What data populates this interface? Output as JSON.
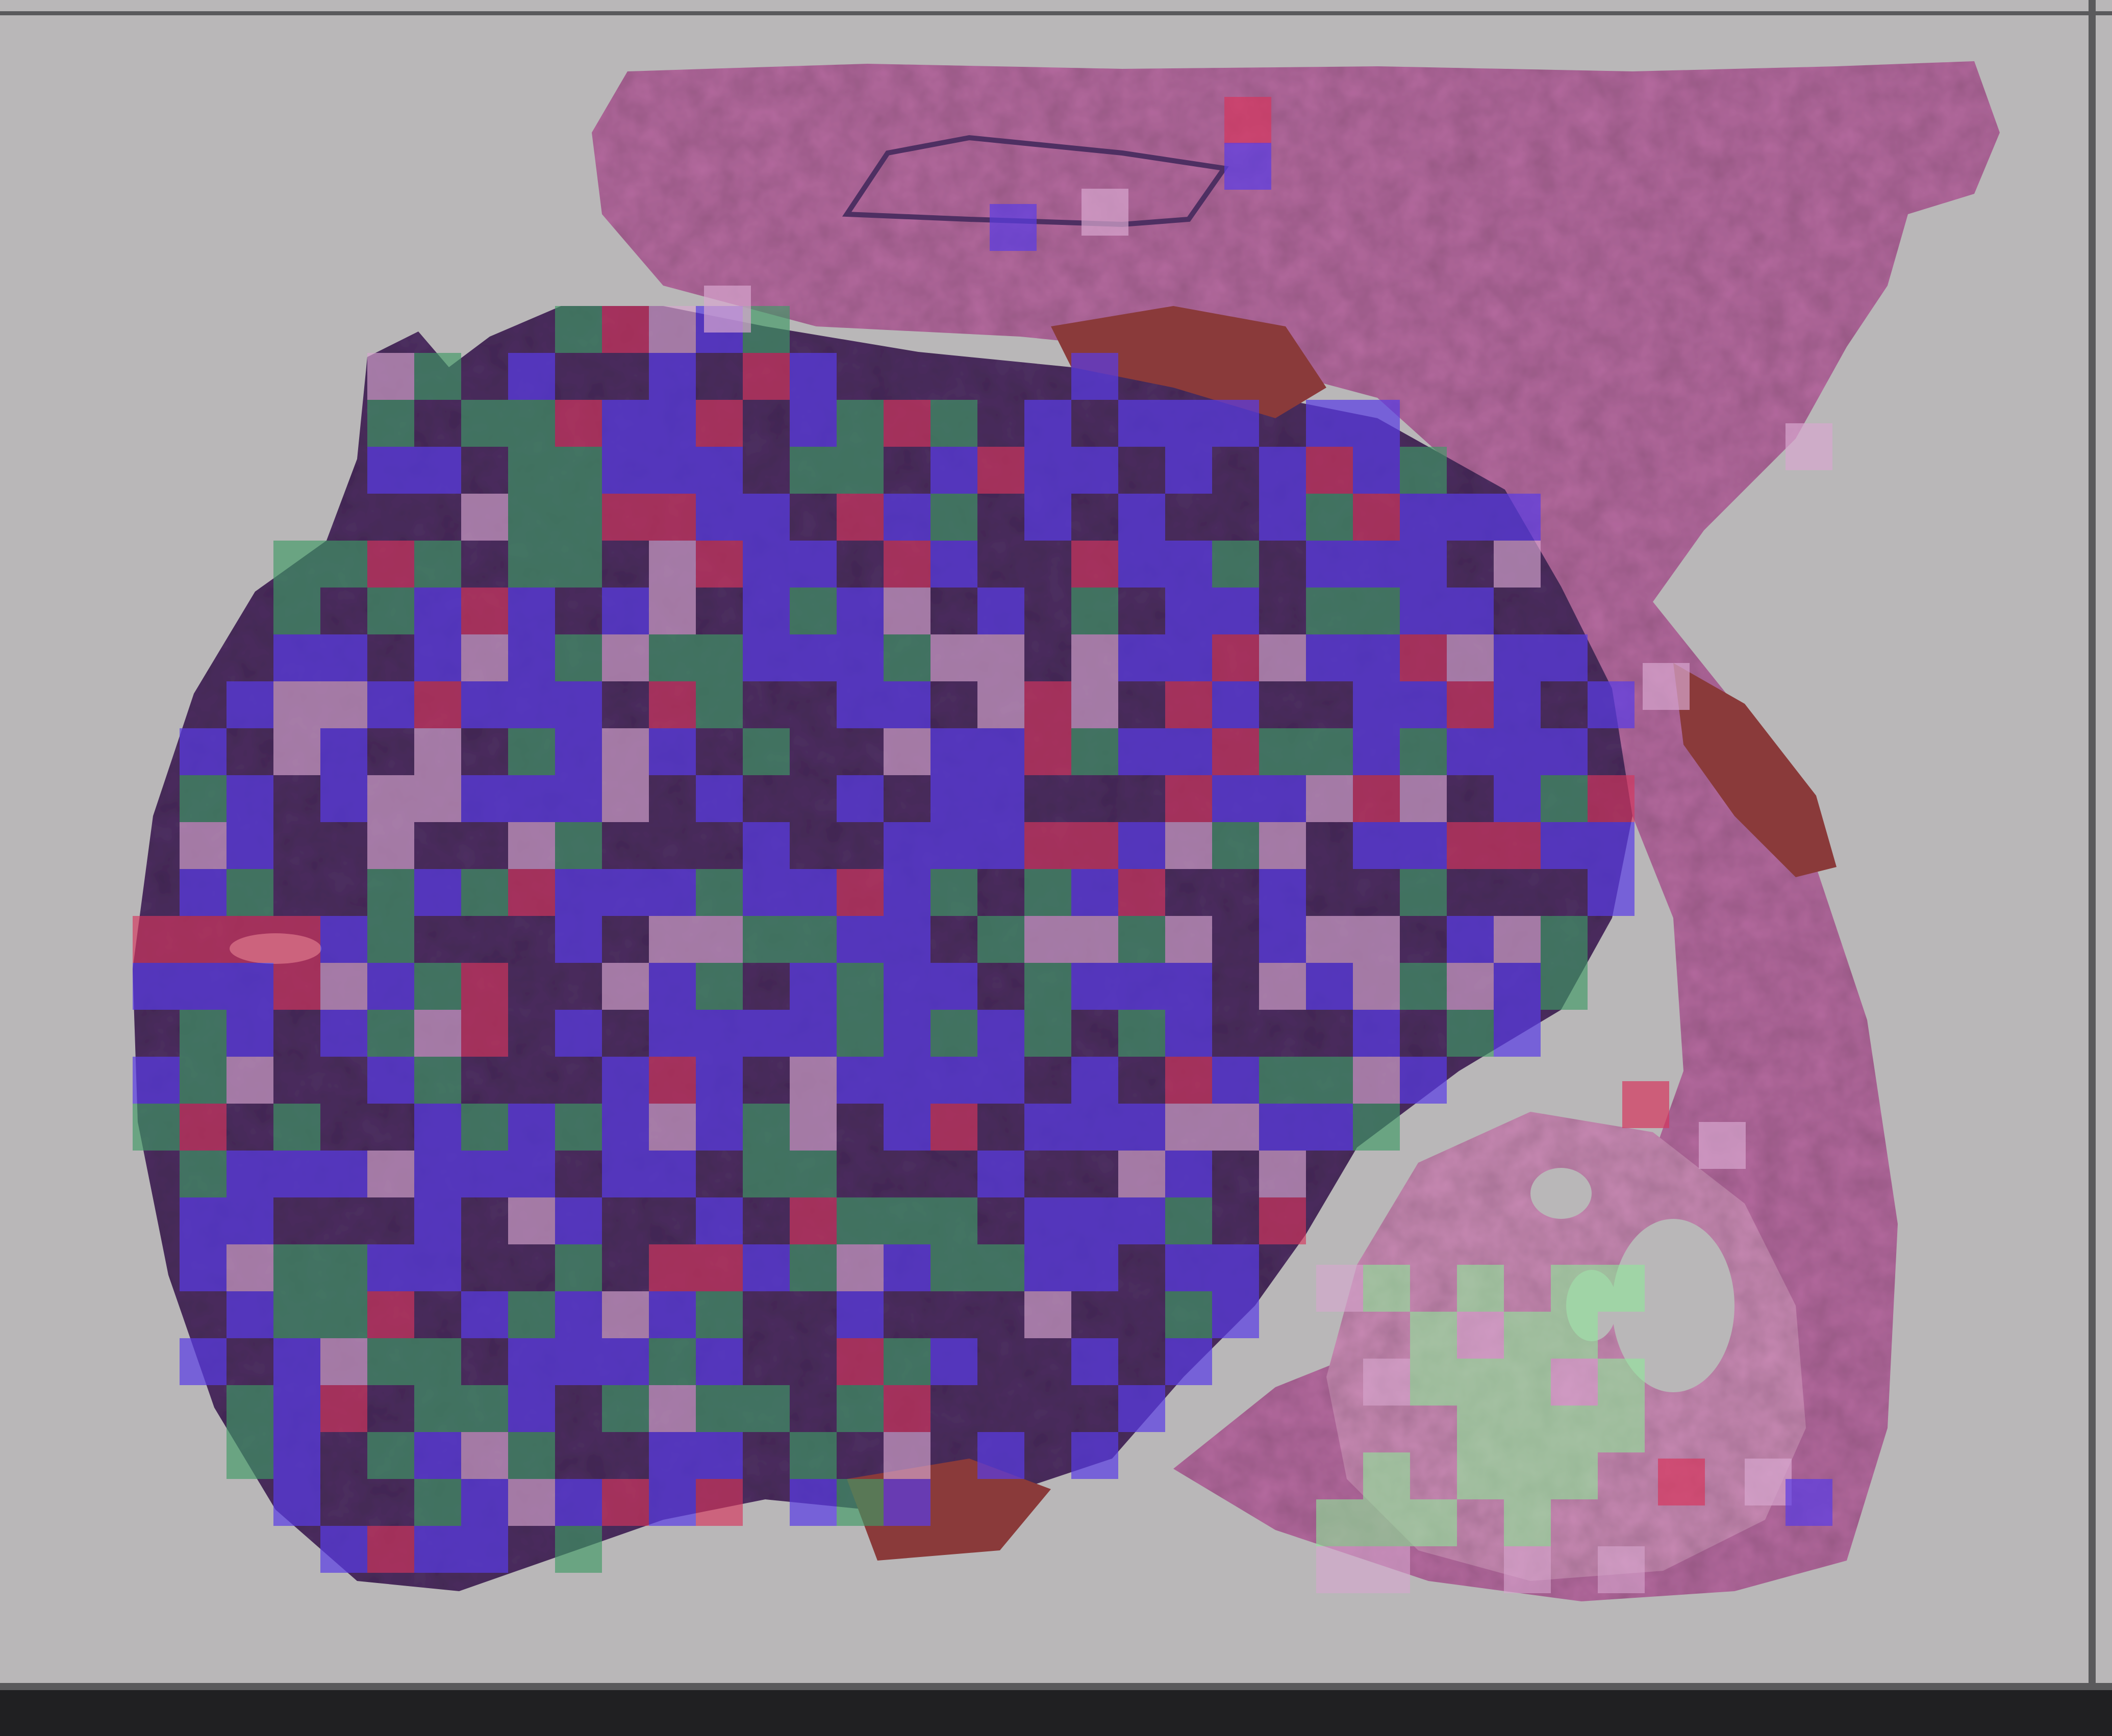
{
  "image": {
    "description_kind": "whole-slide histology with tile overlay",
    "colors": {
      "slide_background": "#b9b7b8",
      "slide_border": "#5a5a5c",
      "bottom_strip": "#202022",
      "tissue_dark": "#4e2f62",
      "tissue_pink": "#b56a9f",
      "tissue_light_pink": "#c98ab4",
      "blood_red": "#8a3a3a",
      "overlay_blue": "#5a3ce6",
      "overlay_green": "#3f9a66",
      "overlay_light_green": "#8fe89a",
      "overlay_red": "#d6365e",
      "overlay_pink": "#d7a6cf"
    },
    "overlay_classes": [
      "overlay_blue",
      "overlay_green",
      "overlay_red",
      "overlay_pink"
    ]
  }
}
